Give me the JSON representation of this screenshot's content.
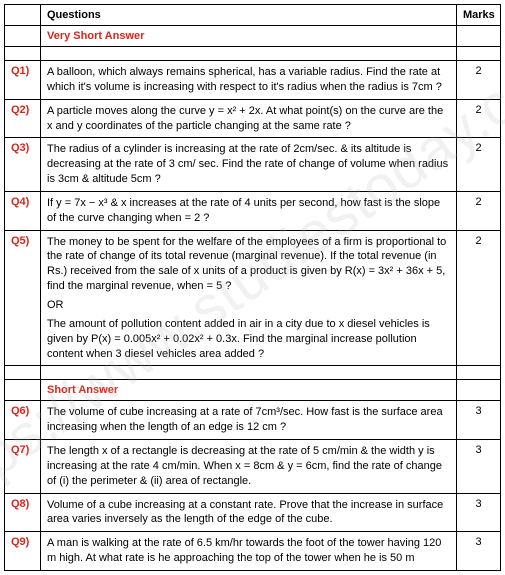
{
  "header": {
    "col_questions": "Questions",
    "col_marks": "Marks"
  },
  "sections": {
    "very_short": "Very Short Answer",
    "short": "Short Answer"
  },
  "questions": [
    {
      "id": "Q1)",
      "marks": "2",
      "text": "A balloon, which always remains spherical, has a variable radius. Find the rate at which it's volume is increasing with respect to it's radius when the radius is 7cm ?"
    },
    {
      "id": "Q2)",
      "marks": "2",
      "text": "A particle moves along the curve y = x² + 2x. At what point(s) on the curve are the x and y coordinates of the particle changing at the same rate ?"
    },
    {
      "id": "Q3)",
      "marks": "2",
      "text": "The radius of a cylinder is increasing at the rate of 2cm/sec. & its altitude is decreasing at the rate of 3 cm/ sec. Find the rate of change of volume when radius is 3cm & altitude 5cm ?"
    },
    {
      "id": "Q4)",
      "marks": "2",
      "text": "If y = 7x − x³ & x increases at the rate of 4 units per second, how fast is the slope of the curve changing when = 2 ?"
    },
    {
      "id": "Q5)",
      "marks": "2",
      "text": "The money to be spent for the welfare of the employees of a firm is proportional to the rate of change of its total revenue (marginal revenue). If the total revenue (in Rs.) received from the sale of x units of a product is given by R(x) = 3x² + 36x + 5, find the marginal revenue, when = 5 ?",
      "or": "OR",
      "text2": "The amount of pollution content added in air in a city due to x diesel vehicles is given by P(x) = 0.005x² + 0.02x² + 0.3x. Find the marginal increase pollution content when 3 diesel vehicles area added ?"
    },
    {
      "id": "Q6)",
      "marks": "3",
      "text": "The volume of cube increasing at a rate of 7cm³/sec. How fast is the surface area increasing when the length of an edge is 12 cm ?"
    },
    {
      "id": "Q7)",
      "marks": "3",
      "text": "The length x of a rectangle is decreasing at the rate of 5 cm/min & the width y is increasing at the rate 4 cm/min. When x = 8cm & y = 6cm, find the rate of change of (i) the perimeter & (ii) area of rectangle."
    },
    {
      "id": "Q8)",
      "marks": "3",
      "text": "Volume of a cube increasing at a constant rate. Prove that the increase in surface area varies inversely as the length of the edge of the cube."
    },
    {
      "id": "Q9)",
      "marks": "3",
      "text": "A man is walking at the rate of 6.5 km/hr towards the foot of the tower having 120 m high. At what rate is he approaching the top of the tower when he is 50 m"
    }
  ],
  "watermark": "https://www.studiestoday.com",
  "colors": {
    "section_title": "#d9261c",
    "qnum": "#d9261c",
    "border": "#000000",
    "text": "#000000"
  }
}
